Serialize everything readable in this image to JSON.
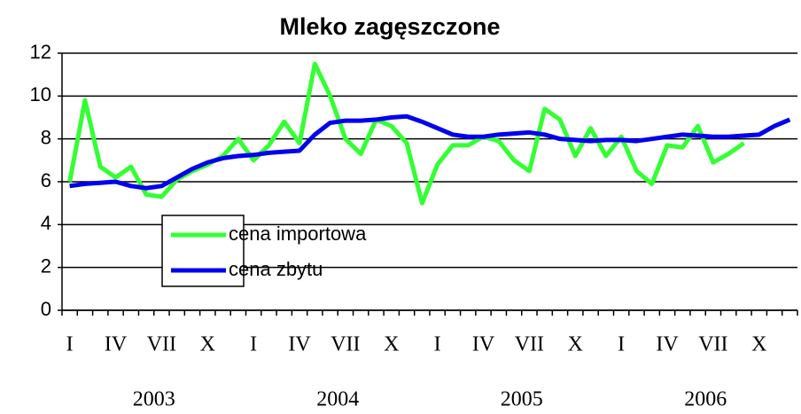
{
  "chart_data": {
    "type": "line",
    "title": "Mleko zagęszczone",
    "categories": [
      "I",
      null,
      null,
      "IV",
      null,
      null,
      "VII",
      null,
      null,
      "X",
      null,
      null,
      "I",
      null,
      null,
      "IV",
      null,
      null,
      "VII",
      null,
      null,
      "X",
      null,
      null,
      "I",
      null,
      null,
      "IV",
      null,
      null,
      "VII",
      null,
      null,
      "X",
      null,
      null,
      "I",
      null,
      null,
      "IV",
      null,
      null,
      "VII",
      null,
      null,
      "X",
      null,
      null
    ],
    "years": [
      "2003",
      "2004",
      "2005",
      "2006"
    ],
    "series": [
      {
        "name": "cena importowa",
        "color": "#33ff33",
        "values": [
          6.0,
          9.8,
          6.7,
          6.2,
          6.7,
          5.4,
          5.3,
          6.1,
          6.5,
          6.8,
          7.2,
          8.0,
          7.0,
          7.7,
          8.8,
          7.8,
          11.5,
          10.0,
          8.0,
          7.3,
          8.9,
          8.6,
          7.8,
          5.0,
          6.8,
          7.7,
          7.7,
          8.1,
          7.9,
          7.0,
          6.5,
          9.4,
          8.9,
          7.2,
          8.5,
          7.2,
          8.1,
          6.5,
          5.9,
          7.7,
          7.6,
          8.6,
          6.9,
          7.3,
          7.8,
          null,
          null,
          null
        ]
      },
      {
        "name": "cena zbytu",
        "color": "#0000ee",
        "values": [
          5.8,
          5.9,
          5.95,
          6.0,
          5.8,
          5.7,
          5.8,
          6.2,
          6.6,
          6.9,
          7.1,
          7.2,
          7.25,
          7.35,
          7.4,
          7.45,
          8.2,
          8.75,
          8.85,
          8.85,
          8.9,
          9.0,
          9.05,
          8.8,
          8.5,
          8.2,
          8.1,
          8.1,
          8.2,
          8.25,
          8.3,
          8.2,
          8.0,
          7.95,
          7.9,
          7.95,
          7.95,
          7.9,
          8.0,
          8.1,
          8.2,
          8.15,
          8.1,
          8.1,
          8.15,
          8.2,
          8.6,
          8.9
        ]
      }
    ],
    "ylim": [
      0,
      12
    ],
    "yticks": [
      0,
      2,
      4,
      6,
      8,
      10,
      12
    ],
    "grid": true,
    "legend": "lower left"
  }
}
